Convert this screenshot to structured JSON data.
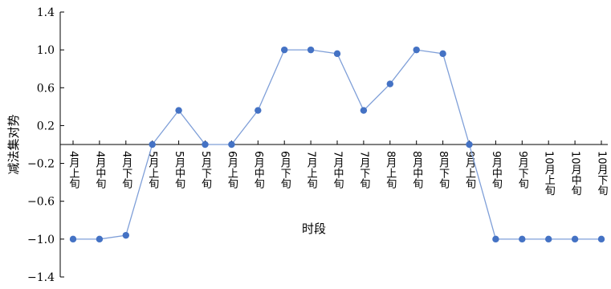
{
  "chart_data": {
    "type": "line",
    "title": "",
    "xlabel": "时段",
    "ylabel": "减法集对势",
    "ylim": [
      -1.4,
      1.4
    ],
    "yticks": [
      1.4,
      1.0,
      0.6,
      0.2,
      -0.2,
      -0.6,
      -1.0,
      -1.4
    ],
    "ytick_labels": [
      "1.4",
      "1.0",
      "0.6",
      "0.2",
      "−0.2",
      "−0.6",
      "−1.0",
      "−1.4"
    ],
    "categories": [
      "4月上旬",
      "4月中旬",
      "4月下旬",
      "5月上旬",
      "5月中旬",
      "5月下旬",
      "6月上旬",
      "6月中旬",
      "6月下旬",
      "7月上旬",
      "7月中旬",
      "7月下旬",
      "8月上旬",
      "8月中旬",
      "8月下旬",
      "9月上旬",
      "9月中旬",
      "9月下旬",
      "10月上旬",
      "10月中旬",
      "10月下旬"
    ],
    "series": [
      {
        "values": [
          -1.0,
          -1.0,
          -0.96,
          0.0,
          0.36,
          0.0,
          0.0,
          0.36,
          1.0,
          1.0,
          0.96,
          0.36,
          0.64,
          1.0,
          0.96,
          0.0,
          -1.0,
          -1.0,
          -1.0,
          -1.0,
          -1.0
        ],
        "color": "#4472C4"
      }
    ],
    "grid": false,
    "legend": "none"
  }
}
